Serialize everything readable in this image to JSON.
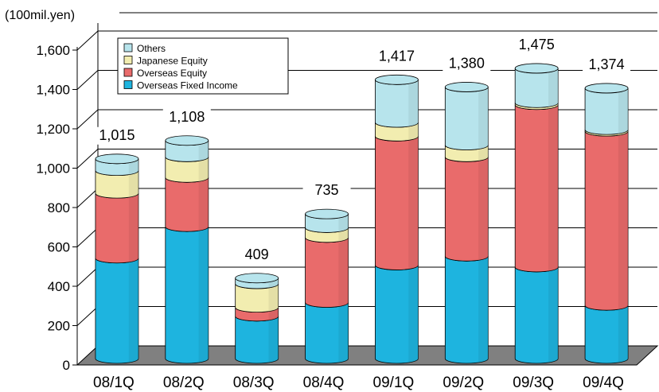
{
  "chart_data": {
    "type": "bar",
    "stacked": true,
    "unit_label": "(100mil.yen)",
    "categories": [
      "08/1Q",
      "08/2Q",
      "08/3Q",
      "08/4Q",
      "09/1Q",
      "09/2Q",
      "09/3Q",
      "09/4Q"
    ],
    "series": [
      {
        "name": "Overseas Fixed Income",
        "color": "#1EB4DF",
        "values": [
          510,
          670,
          215,
          285,
          475,
          520,
          465,
          270
        ]
      },
      {
        "name": "Overseas Equity",
        "color": "#E96B6B",
        "values": [
          330,
          250,
          45,
          330,
          655,
          505,
          825,
          885
        ]
      },
      {
        "name": "Japanese Equity",
        "color": "#F2EDB0",
        "values": [
          115,
          105,
          120,
          50,
          70,
          60,
          10,
          8
        ]
      },
      {
        "name": "Others",
        "color": "#B7E4EC",
        "values": [
          60,
          83,
          29,
          70,
          217,
          295,
          175,
          211
        ]
      }
    ],
    "totals": [
      "1,015",
      "1,108",
      "409",
      "735",
      "1,417",
      "1,380",
      "1,475",
      "1,374"
    ],
    "yticks": [
      "0",
      "200",
      "400",
      "600",
      "800",
      "1,000",
      "1,200",
      "1,400",
      "1,600"
    ],
    "ylim": [
      0,
      1600
    ],
    "grid": true,
    "legend_position": "top-left"
  }
}
